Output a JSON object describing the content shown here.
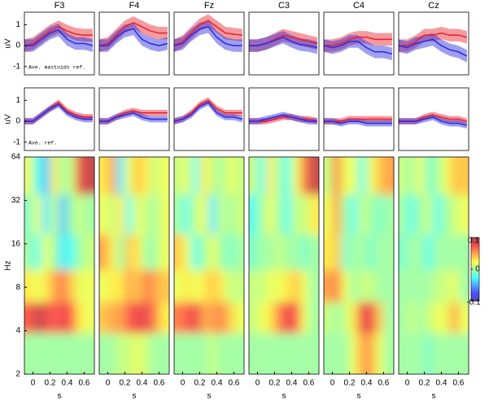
{
  "chart_data": [
    {
      "type": "line",
      "title": "F3",
      "ylabel": "uV",
      "annotation": "Ave. mastoids ref.",
      "x": [
        -0.1,
        0,
        0.1,
        0.2,
        0.3,
        0.4,
        0.5,
        0.6,
        0.7
      ],
      "xlim": [
        -0.1,
        0.72
      ],
      "ylim": [
        -1.4,
        1.6
      ],
      "yticks": [
        -1,
        0,
        1
      ],
      "series": [
        {
          "color": "#e8202a",
          "error": 0.3,
          "values": [
            0,
            0.1,
            0.4,
            0.7,
            0.9,
            0.7,
            0.55,
            0.5,
            0.5
          ]
        },
        {
          "color": "#2a2ae0",
          "error": 0.3,
          "values": [
            0,
            0,
            0.3,
            0.6,
            0.75,
            0.3,
            0.1,
            0.1,
            0
          ]
        }
      ]
    },
    {
      "type": "line",
      "title": "F4",
      "x": [
        -0.1,
        0,
        0.1,
        0.2,
        0.3,
        0.4,
        0.5,
        0.6,
        0.7
      ],
      "xlim": [
        -0.1,
        0.72
      ],
      "ylim": [
        -1.4,
        1.6
      ],
      "series": [
        {
          "color": "#e8202a",
          "error": 0.3,
          "values": [
            0,
            0.1,
            0.5,
            0.9,
            1.1,
            0.9,
            0.7,
            0.6,
            0.6
          ]
        },
        {
          "color": "#2a2ae0",
          "error": 0.3,
          "values": [
            0,
            0,
            0.4,
            0.7,
            0.8,
            0.3,
            0.1,
            0,
            0.1
          ]
        }
      ]
    },
    {
      "type": "line",
      "title": "Fz",
      "x": [
        -0.1,
        0,
        0.1,
        0.2,
        0.3,
        0.4,
        0.5,
        0.6,
        0.7
      ],
      "xlim": [
        -0.1,
        0.72
      ],
      "ylim": [
        -1.4,
        1.6
      ],
      "series": [
        {
          "color": "#e8202a",
          "error": 0.3,
          "values": [
            0,
            0.2,
            0.6,
            1.0,
            1.2,
            0.9,
            0.6,
            0.55,
            0.5
          ]
        },
        {
          "color": "#2a2ae0",
          "error": 0.3,
          "values": [
            0,
            0.1,
            0.5,
            0.8,
            0.9,
            0.4,
            0.1,
            0,
            0
          ]
        }
      ]
    },
    {
      "type": "line",
      "title": "C3",
      "x": [
        -0.1,
        0,
        0.1,
        0.2,
        0.3,
        0.4,
        0.5,
        0.6,
        0.7
      ],
      "xlim": [
        -0.1,
        0.72
      ],
      "ylim": [
        -1.4,
        1.6
      ],
      "series": [
        {
          "color": "#e8202a",
          "error": 0.3,
          "values": [
            0,
            0,
            0.1,
            0.3,
            0.5,
            0.4,
            0.3,
            0.2,
            0.1
          ]
        },
        {
          "color": "#2a2ae0",
          "error": 0.3,
          "values": [
            0,
            0,
            0.1,
            0.25,
            0.4,
            0.2,
            0.05,
            0,
            -0.1
          ]
        }
      ]
    },
    {
      "type": "line",
      "title": "C4",
      "x": [
        -0.1,
        0,
        0.1,
        0.2,
        0.3,
        0.4,
        0.5,
        0.6,
        0.7
      ],
      "xlim": [
        -0.1,
        0.72
      ],
      "ylim": [
        -1.4,
        1.6
      ],
      "series": [
        {
          "color": "#e8202a",
          "error": 0.3,
          "values": [
            0,
            0,
            0.1,
            0.3,
            0.4,
            0.4,
            0.3,
            0.3,
            0.3
          ]
        },
        {
          "color": "#2a2ae0",
          "error": 0.3,
          "values": [
            0,
            -0.1,
            0,
            0.2,
            0.2,
            -0.1,
            -0.3,
            -0.3,
            -0.4
          ]
        }
      ]
    },
    {
      "type": "line",
      "title": "Cz",
      "x": [
        -0.1,
        0,
        0.1,
        0.2,
        0.3,
        0.4,
        0.5,
        0.6,
        0.7
      ],
      "xlim": [
        -0.1,
        0.72
      ],
      "ylim": [
        -1.4,
        1.6
      ],
      "series": [
        {
          "color": "#e8202a",
          "error": 0.3,
          "values": [
            0,
            0,
            0.2,
            0.5,
            0.5,
            0.6,
            0.5,
            0.5,
            0.4
          ]
        },
        {
          "color": "#2a2ae0",
          "error": 0.3,
          "values": [
            0,
            -0.1,
            0.1,
            0.2,
            0.3,
            0,
            -0.2,
            -0.3,
            -0.5
          ]
        }
      ]
    },
    {
      "type": "line",
      "ylabel": "uV",
      "annotation": "Ave. ref.",
      "x": [
        -0.1,
        0,
        0.1,
        0.2,
        0.3,
        0.4,
        0.5,
        0.6,
        0.7
      ],
      "xlim": [
        -0.1,
        0.72
      ],
      "ylim": [
        -1.4,
        1.6
      ],
      "yticks": [
        -1,
        0,
        1
      ],
      "series": [
        {
          "color": "#e8202a",
          "error": 0.15,
          "values": [
            0,
            0,
            0.3,
            0.6,
            0.9,
            0.5,
            0.3,
            0.2,
            0.2
          ]
        },
        {
          "color": "#2a2ae0",
          "error": 0.15,
          "values": [
            0,
            0,
            0.3,
            0.6,
            0.8,
            0.4,
            0.2,
            0.1,
            0.1
          ]
        }
      ]
    },
    {
      "type": "line",
      "x": [
        -0.1,
        0,
        0.1,
        0.2,
        0.3,
        0.4,
        0.5,
        0.6,
        0.7
      ],
      "xlim": [
        -0.1,
        0.72
      ],
      "ylim": [
        -1.4,
        1.6
      ],
      "series": [
        {
          "color": "#e8202a",
          "error": 0.15,
          "values": [
            0,
            0,
            0.2,
            0.4,
            0.5,
            0.4,
            0.4,
            0.4,
            0.4
          ]
        },
        {
          "color": "#2a2ae0",
          "error": 0.15,
          "values": [
            0,
            0,
            0.2,
            0.3,
            0.4,
            0.2,
            0.1,
            0.1,
            0.1
          ]
        }
      ]
    },
    {
      "type": "line",
      "x": [
        -0.1,
        0,
        0.1,
        0.2,
        0.3,
        0.4,
        0.5,
        0.6,
        0.7
      ],
      "xlim": [
        -0.1,
        0.72
      ],
      "ylim": [
        -1.4,
        1.6
      ],
      "series": [
        {
          "color": "#e8202a",
          "error": 0.15,
          "values": [
            0,
            0.1,
            0.4,
            0.8,
            1.0,
            0.6,
            0.4,
            0.4,
            0.4
          ]
        },
        {
          "color": "#2a2ae0",
          "error": 0.15,
          "values": [
            0,
            0.1,
            0.3,
            0.7,
            0.9,
            0.4,
            0.2,
            0.2,
            0.1
          ]
        }
      ]
    },
    {
      "type": "line",
      "x": [
        -0.1,
        0,
        0.1,
        0.2,
        0.3,
        0.4,
        0.5,
        0.6,
        0.7
      ],
      "xlim": [
        -0.1,
        0.72
      ],
      "ylim": [
        -1.4,
        1.6
      ],
      "series": [
        {
          "color": "#e8202a",
          "error": 0.15,
          "values": [
            0,
            0,
            0,
            0.1,
            0.2,
            0.2,
            0.1,
            0.1,
            0
          ]
        },
        {
          "color": "#2a2ae0",
          "error": 0.15,
          "values": [
            0,
            0,
            0.1,
            0.2,
            0.3,
            0.2,
            0.1,
            0,
            0
          ]
        }
      ]
    },
    {
      "type": "line",
      "x": [
        -0.1,
        0,
        0.1,
        0.2,
        0.3,
        0.4,
        0.5,
        0.6,
        0.7
      ],
      "xlim": [
        -0.1,
        0.72
      ],
      "ylim": [
        -1.4,
        1.6
      ],
      "series": [
        {
          "color": "#e8202a",
          "error": 0.15,
          "values": [
            0,
            0,
            0,
            0.1,
            0.1,
            0.1,
            0.1,
            0.1,
            0.1
          ]
        },
        {
          "color": "#2a2ae0",
          "error": 0.15,
          "values": [
            0,
            0,
            -0.1,
            0,
            0,
            -0.1,
            -0.1,
            -0.1,
            -0.1
          ]
        }
      ]
    },
    {
      "type": "line",
      "x": [
        -0.1,
        0,
        0.1,
        0.2,
        0.3,
        0.4,
        0.5,
        0.6,
        0.7
      ],
      "xlim": [
        -0.1,
        0.72
      ],
      "ylim": [
        -1.4,
        1.6
      ],
      "series": [
        {
          "color": "#e8202a",
          "error": 0.15,
          "values": [
            0,
            0,
            0,
            0.2,
            0.3,
            0.2,
            0.1,
            0.1,
            0
          ]
        },
        {
          "color": "#2a2ae0",
          "error": 0.15,
          "values": [
            0,
            0,
            0,
            0.1,
            0.2,
            0,
            -0.1,
            -0.1,
            -0.2
          ]
        }
      ]
    },
    {
      "type": "heatmap",
      "ylabel": "Hz",
      "xlabel": "s",
      "xlim": [
        -0.1,
        0.72
      ],
      "ylim": [
        2,
        64
      ],
      "log_y": true,
      "xticks": [
        0,
        0.2,
        0.4,
        0.6
      ],
      "yticks": [
        2,
        4,
        8,
        16,
        32,
        64
      ],
      "x": [
        -0.05,
        0.05,
        0.15,
        0.25,
        0.35,
        0.45,
        0.55,
        0.65
      ],
      "y": [
        3,
        5,
        8,
        14,
        25,
        50
      ],
      "values": [
        [
          0,
          0,
          0,
          0,
          0,
          0,
          0,
          0
        ],
        [
          0.07,
          0.09,
          0.08,
          0.07,
          0.08,
          0.07,
          0.03,
          0.02
        ],
        [
          0.03,
          0.02,
          0.03,
          0.05,
          0.06,
          0.04,
          0.02,
          0.02
        ],
        [
          0,
          -0.02,
          0.02,
          0,
          -0.03,
          -0.02,
          0,
          0.01
        ],
        [
          -0.01,
          0.02,
          -0.03,
          0.01,
          -0.04,
          0,
          0.01,
          0
        ],
        [
          0.02,
          -0.02,
          -0.04,
          0.03,
          0,
          0.01,
          0.08,
          0.09
        ]
      ]
    },
    {
      "type": "heatmap",
      "xlabel": "s",
      "xlim": [
        -0.1,
        0.72
      ],
      "ylim": [
        2,
        64
      ],
      "log_y": true,
      "xticks": [
        0,
        0.2,
        0.4,
        0.6
      ],
      "x": [
        -0.05,
        0.05,
        0.15,
        0.25,
        0.35,
        0.45,
        0.55,
        0.65
      ],
      "y": [
        3,
        5,
        8,
        14,
        25,
        50
      ],
      "values": [
        [
          0,
          0,
          0.01,
          0.01,
          0.02,
          0.01,
          0,
          0
        ],
        [
          0.04,
          0.05,
          0.05,
          0.07,
          0.08,
          0.08,
          0.06,
          0.03
        ],
        [
          0.02,
          0.03,
          0.03,
          0.05,
          0.04,
          0.06,
          0.05,
          0.04
        ],
        [
          0.05,
          0.03,
          0,
          0.04,
          0.03,
          0,
          0,
          0.02
        ],
        [
          0.02,
          0.01,
          0.03,
          -0.02,
          0.02,
          0.01,
          0,
          0.02
        ],
        [
          0.03,
          0.05,
          -0.03,
          0.02,
          0.04,
          0.03,
          0.01,
          0.02
        ]
      ]
    },
    {
      "type": "heatmap",
      "xlabel": "s",
      "xlim": [
        -0.1,
        0.72
      ],
      "ylim": [
        2,
        64
      ],
      "log_y": true,
      "xticks": [
        0,
        0.2,
        0.4,
        0.6
      ],
      "x": [
        -0.05,
        0.05,
        0.15,
        0.25,
        0.35,
        0.45,
        0.55,
        0.65
      ],
      "y": [
        3,
        5,
        8,
        14,
        25,
        50
      ],
      "values": [
        [
          0,
          0,
          0,
          0,
          0.01,
          0,
          0,
          0
        ],
        [
          0.06,
          0.07,
          0.08,
          0.05,
          0.05,
          0.06,
          0.04,
          0.02
        ],
        [
          0.02,
          0.03,
          0.02,
          0.03,
          0.04,
          0.03,
          0.01,
          0.01
        ],
        [
          0.04,
          0.02,
          -0.02,
          0,
          0.02,
          0,
          -0.01,
          0
        ],
        [
          0,
          -0.02,
          0.01,
          0.02,
          -0.03,
          0.01,
          0,
          0.01
        ],
        [
          0.01,
          0.02,
          -0.02,
          0.03,
          0.01,
          0,
          0.02,
          0.01
        ]
      ]
    },
    {
      "type": "heatmap",
      "xlabel": "s",
      "xlim": [
        -0.1,
        0.72
      ],
      "ylim": [
        2,
        64
      ],
      "log_y": true,
      "xticks": [
        0,
        0.2,
        0.4,
        0.6
      ],
      "x": [
        -0.05,
        0.05,
        0.15,
        0.25,
        0.35,
        0.45,
        0.55,
        0.65
      ],
      "y": [
        3,
        5,
        8,
        14,
        25,
        50
      ],
      "values": [
        [
          0,
          0,
          0,
          0,
          0,
          0,
          0,
          0
        ],
        [
          0.01,
          0.02,
          0.03,
          0.06,
          0.08,
          0.07,
          0.02,
          0
        ],
        [
          0.01,
          0.01,
          0.02,
          0.02,
          0.03,
          0.04,
          0.02,
          0
        ],
        [
          -0.01,
          0,
          0,
          0.01,
          0,
          0,
          -0.01,
          0
        ],
        [
          -0.02,
          0,
          0.02,
          0,
          -0.02,
          0.01,
          0.01,
          0.03
        ],
        [
          0.01,
          -0.02,
          0.03,
          0,
          -0.02,
          0.02,
          0.06,
          0.09
        ]
      ]
    },
    {
      "type": "heatmap",
      "xlabel": "s",
      "xlim": [
        -0.1,
        0.72
      ],
      "ylim": [
        2,
        64
      ],
      "log_y": true,
      "xticks": [
        0,
        0.2,
        0.4,
        0.6
      ],
      "x": [
        -0.05,
        0.05,
        0.15,
        0.25,
        0.35,
        0.45,
        0.55,
        0.65
      ],
      "y": [
        3,
        5,
        8,
        14,
        25,
        50
      ],
      "values": [
        [
          0,
          0,
          0,
          0.02,
          0.05,
          0.05,
          0.02,
          0
        ],
        [
          0.01,
          0,
          0.01,
          0.03,
          0.08,
          0.08,
          0.04,
          0
        ],
        [
          0.05,
          0.06,
          0.02,
          0,
          0.01,
          0.01,
          0,
          0
        ],
        [
          0.03,
          0.04,
          -0.01,
          0,
          0,
          -0.01,
          0,
          0
        ],
        [
          0.02,
          0.05,
          0,
          -0.02,
          0.01,
          0,
          -0.01,
          0
        ],
        [
          0.01,
          0.06,
          0.02,
          0.02,
          -0.02,
          0.02,
          0.04,
          0.05
        ]
      ]
    },
    {
      "type": "heatmap",
      "xlabel": "s",
      "xlim": [
        -0.1,
        0.72
      ],
      "ylim": [
        2,
        64
      ],
      "log_y": true,
      "xticks": [
        0,
        0.2,
        0.4,
        0.6
      ],
      "x": [
        -0.05,
        0.05,
        0.15,
        0.25,
        0.35,
        0.45,
        0.55,
        0.65
      ],
      "y": [
        3,
        5,
        8,
        14,
        25,
        50
      ],
      "values": [
        [
          0,
          0,
          0,
          -0.01,
          0,
          0,
          0,
          0
        ],
        [
          0,
          0.01,
          0,
          0.01,
          0.02,
          0.02,
          0.05,
          0.02
        ],
        [
          0,
          0,
          0,
          0,
          0.01,
          0.01,
          0.02,
          0
        ],
        [
          -0.01,
          0,
          0,
          -0.02,
          0,
          0,
          0,
          0
        ],
        [
          0,
          -0.02,
          0,
          0.01,
          -0.02,
          0,
          0.01,
          0.02
        ],
        [
          0.01,
          0,
          0.02,
          -0.01,
          0,
          0.02,
          0.04,
          0.04
        ]
      ]
    },
    {
      "type": "colorbar",
      "zlim": [
        -0.1,
        0.1
      ],
      "ticks": [
        0.1,
        0,
        -0.1
      ]
    }
  ]
}
